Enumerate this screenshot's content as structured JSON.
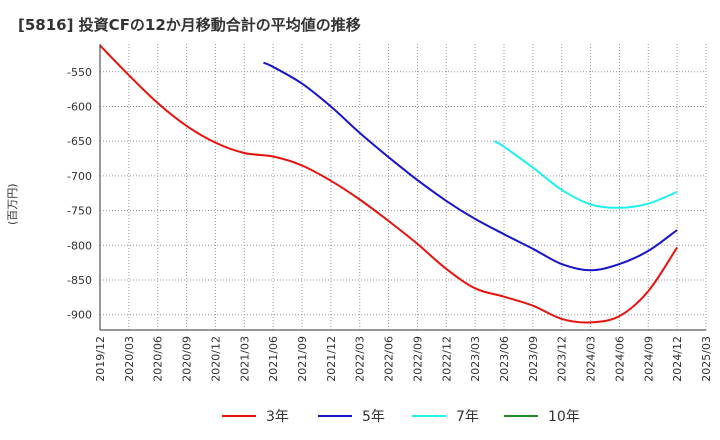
{
  "title": "[5816]  投資CFの12か月移動合計の平均値の推移",
  "chart_data": {
    "type": "line",
    "title": "[5816]  投資CFの12か月移動合計の平均値の推移",
    "ylabel": "(百万円)",
    "xlabel": "",
    "x_ticks": [
      "2019/12",
      "2020/03",
      "2020/06",
      "2020/09",
      "2020/12",
      "2021/03",
      "2021/06",
      "2021/09",
      "2021/12",
      "2022/03",
      "2022/06",
      "2022/09",
      "2022/12",
      "2023/03",
      "2023/06",
      "2023/09",
      "2023/12",
      "2024/03",
      "2024/06",
      "2024/09",
      "2024/12",
      "2025/03"
    ],
    "y_ticks": [
      -550,
      -600,
      -650,
      -700,
      -750,
      -800,
      -850,
      -900
    ],
    "ylim": [
      -922,
      -510
    ],
    "grid": true,
    "legend_position": "bottom",
    "series": [
      {
        "name": "3年",
        "color": "#e8120e",
        "x": [
          "2019/12",
          "2020/03",
          "2020/06",
          "2020/09",
          "2020/12",
          "2021/03",
          "2021/06",
          "2021/09",
          "2021/12",
          "2022/03",
          "2022/06",
          "2022/09",
          "2022/12",
          "2023/03",
          "2023/06",
          "2023/09",
          "2023/12",
          "2024/03",
          "2024/06",
          "2024/09",
          "2024/12"
        ],
        "values": [
          -512,
          -555,
          -595,
          -628,
          -652,
          -667,
          -672,
          -685,
          -707,
          -734,
          -765,
          -798,
          -834,
          -862,
          -874,
          -887,
          -906,
          -911,
          -902,
          -866,
          -803
        ]
      },
      {
        "name": "5年",
        "color": "#1a14c8",
        "x": [
          "2021/05",
          "2021/06",
          "2021/09",
          "2021/12",
          "2022/03",
          "2022/06",
          "2022/09",
          "2022/12",
          "2023/03",
          "2023/06",
          "2023/09",
          "2023/12",
          "2024/03",
          "2024/06",
          "2024/09",
          "2024/12"
        ],
        "values": [
          -537,
          -543,
          -567,
          -600,
          -638,
          -673,
          -706,
          -736,
          -762,
          -784,
          -805,
          -827,
          -836,
          -827,
          -808,
          -778
        ]
      },
      {
        "name": "7年",
        "color": "#1ef0f0",
        "x": [
          "2023/05",
          "2023/06",
          "2023/09",
          "2023/12",
          "2024/03",
          "2024/06",
          "2024/09",
          "2024/12"
        ],
        "values": [
          -650,
          -658,
          -688,
          -720,
          -741,
          -746,
          -740,
          -723
        ]
      },
      {
        "name": "10年",
        "color": "#228b22",
        "x": [],
        "values": []
      }
    ]
  }
}
